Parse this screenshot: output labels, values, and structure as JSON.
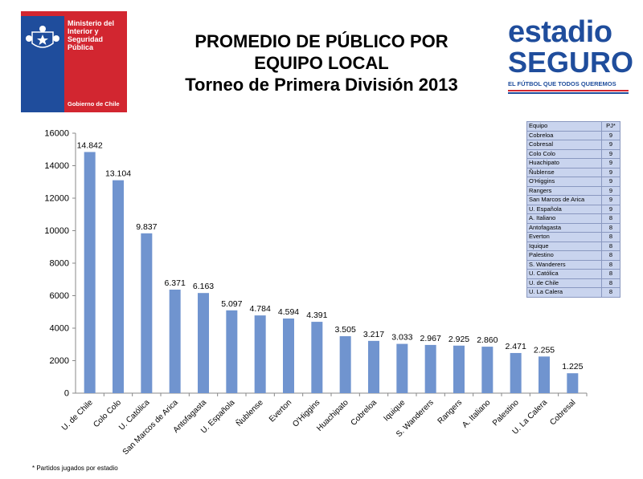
{
  "gov_logo": {
    "name_lines": [
      "Ministerio del",
      "Interior y",
      "Seguridad",
      "Pública"
    ],
    "footer": "Gobierno de Chile",
    "colors": {
      "blue": "#1f4d9c",
      "red": "#d22630"
    }
  },
  "title_lines": [
    "PROMEDIO DE PÚBLICO POR",
    "EQUIPO LOCAL",
    "Torneo de Primera División 2013"
  ],
  "brand_logo": {
    "line1": "estadio",
    "line2": "SEGURO",
    "tagline": "EL FÚTBOL QUE TODOS QUEREMOS",
    "color": "#1f4d9c"
  },
  "chart_data": {
    "type": "bar",
    "categories": [
      "U. de Chile",
      "Colo Colo",
      "U. Católica",
      "San Marcos de Arica",
      "Antofagasta",
      "U. Española",
      "Ñublense",
      "Everton",
      "O'Higgins",
      "Huachipato",
      "Cobreloa",
      "Iquique",
      "S. Wanderers",
      "Rangers",
      "A. Italiano",
      "Palestino",
      "U. La Calera",
      "Cobresal"
    ],
    "values": [
      14842,
      13104,
      9837,
      6371,
      6163,
      5097,
      4784,
      4594,
      4391,
      3505,
      3217,
      3033,
      2967,
      2925,
      2860,
      2471,
      2255,
      1225
    ],
    "value_labels": [
      "14.842",
      "13.104",
      "9.837",
      "6.371",
      "6.163",
      "5.097",
      "4.784",
      "4.594",
      "4.391",
      "3.505",
      "3.217",
      "3.033",
      "2.967",
      "2.925",
      "2.860",
      "2.471",
      "2.255",
      "1.225"
    ],
    "ylim": [
      0,
      16000
    ],
    "yticks": [
      0,
      2000,
      4000,
      6000,
      8000,
      10000,
      12000,
      14000,
      16000
    ],
    "xlabel": "",
    "ylabel": "",
    "grid": false,
    "bar_color": "#7094cf"
  },
  "pj_table": {
    "header": {
      "team": "Equipo",
      "pj": "PJ*"
    },
    "rows": [
      {
        "team": "Cobreloa",
        "pj": "9"
      },
      {
        "team": "Cobresal",
        "pj": "9"
      },
      {
        "team": "Colo Colo",
        "pj": "9"
      },
      {
        "team": "Huachipato",
        "pj": "9"
      },
      {
        "team": "Ñublense",
        "pj": "9"
      },
      {
        "team": "O'Higgins",
        "pj": "9"
      },
      {
        "team": "Rangers",
        "pj": "9"
      },
      {
        "team": "San Marcos de Arica",
        "pj": "9"
      },
      {
        "team": "U. Española",
        "pj": "9"
      },
      {
        "team": "A. Italiano",
        "pj": "8"
      },
      {
        "team": "Antofagasta",
        "pj": "8"
      },
      {
        "team": "Everton",
        "pj": "8"
      },
      {
        "team": "Iquique",
        "pj": "8"
      },
      {
        "team": "Palestino",
        "pj": "8"
      },
      {
        "team": "S. Wanderers",
        "pj": "8"
      },
      {
        "team": "U. Católica",
        "pj": "8"
      },
      {
        "team": "U. de Chile",
        "pj": "8"
      },
      {
        "team": "U. La Calera",
        "pj": "8"
      }
    ]
  },
  "footnote": "* Partidos jugados por estadio"
}
